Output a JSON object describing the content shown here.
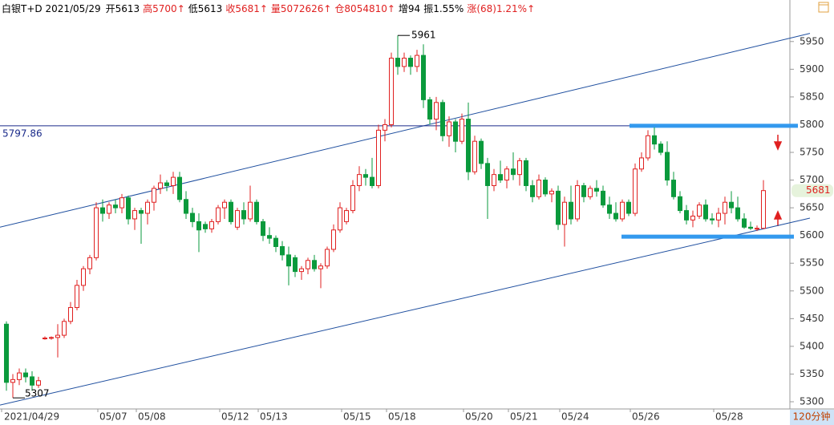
{
  "chart_data": {
    "type": "candlestick",
    "header": [
      {
        "text": "白银T+D 2021/05/29",
        "color": "#000000"
      },
      {
        "text": "开5613",
        "color": "#000000"
      },
      {
        "text": "高5700↑",
        "color": "#e02020"
      },
      {
        "text": "低5613",
        "color": "#000000"
      },
      {
        "text": "收5681↑",
        "color": "#e02020"
      },
      {
        "text": "量5072626↑",
        "color": "#e02020"
      },
      {
        "text": "仓8054810↑",
        "color": "#e02020"
      },
      {
        "text": "增94",
        "color": "#000000"
      },
      {
        "text": "振1.55%",
        "color": "#000000"
      },
      {
        "text": "涨(68)1.21%↑",
        "color": "#e02020"
      }
    ],
    "up_color": "#e02020",
    "down_color": "#0a9a3c",
    "ylim": [
      5287,
      5996
    ],
    "yticks": [
      5300,
      5350,
      5400,
      5450,
      5500,
      5550,
      5600,
      5650,
      5700,
      5750,
      5800,
      5850,
      5900,
      5950
    ],
    "ref_line": {
      "value": 5797.86,
      "label": "5797.86",
      "color": "#1a2a8a"
    },
    "channel": [
      {
        "start": 5615,
        "end": 5956
      },
      {
        "start": 5294,
        "end": 5623
      }
    ],
    "channel_color": "#1f4f9f",
    "levels": [
      5798,
      5598
    ],
    "level_color": "#3399ee",
    "high_label": "5961",
    "low_label": "5307",
    "period": "120分钟",
    "categories": [
      "2021/04/29",
      null,
      null,
      null,
      null,
      null,
      null,
      null,
      null,
      null,
      null,
      null,
      null,
      null,
      null,
      "05/07",
      null,
      null,
      null,
      null,
      null,
      "05/08",
      null,
      null,
      null,
      null,
      null,
      null,
      null,
      null,
      null,
      null,
      null,
      null,
      "05/12",
      null,
      null,
      null,
      null,
      null,
      "05/13",
      null,
      null,
      null,
      null,
      null,
      null,
      null,
      null,
      null,
      null,
      null,
      null,
      "05/15",
      null,
      null,
      null,
      null,
      null,
      null,
      "05/18",
      null,
      null,
      null,
      null,
      null,
      null,
      null,
      null,
      null,
      null,
      null,
      "05/20",
      null,
      null,
      null,
      null,
      null,
      null,
      "05/21",
      null,
      null,
      null,
      null,
      null,
      null,
      null,
      "05/24",
      null,
      null,
      null,
      null,
      null,
      null,
      null,
      null,
      null,
      null,
      "05/26",
      null,
      null,
      null,
      null,
      null,
      null,
      null,
      null,
      null,
      null,
      null,
      null,
      "05/28",
      null,
      null,
      null,
      null,
      null,
      null,
      null
    ],
    "candles": [
      [
        5440,
        5445,
        5320,
        5335
      ],
      [
        5335,
        5350,
        5307,
        5340
      ],
      [
        5340,
        5360,
        5330,
        5352
      ],
      [
        5352,
        5360,
        5335,
        5345
      ],
      [
        5345,
        5355,
        5320,
        5330
      ],
      [
        5330,
        5345,
        5325,
        5338
      ],
      [
        5415,
        5418,
        5412,
        5415
      ],
      [
        5415,
        5418,
        5412,
        5416
      ],
      [
        5416,
        5440,
        5380,
        5420
      ],
      [
        5420,
        5450,
        5415,
        5445
      ],
      [
        5445,
        5480,
        5440,
        5470
      ],
      [
        5470,
        5520,
        5465,
        5510
      ],
      [
        5510,
        5545,
        5500,
        5540
      ],
      [
        5540,
        5565,
        5530,
        5560
      ],
      [
        5560,
        5660,
        5555,
        5650
      ],
      [
        5650,
        5665,
        5625,
        5640
      ],
      [
        5640,
        5660,
        5630,
        5655
      ],
      [
        5655,
        5665,
        5640,
        5650
      ],
      [
        5650,
        5675,
        5640,
        5668
      ],
      [
        5668,
        5672,
        5620,
        5630
      ],
      [
        5630,
        5650,
        5610,
        5645
      ],
      [
        5645,
        5650,
        5585,
        5640
      ],
      [
        5640,
        5665,
        5620,
        5660
      ],
      [
        5660,
        5690,
        5645,
        5685
      ],
      [
        5685,
        5710,
        5675,
        5695
      ],
      [
        5695,
        5700,
        5680,
        5690
      ],
      [
        5690,
        5715,
        5675,
        5705
      ],
      [
        5705,
        5715,
        5660,
        5665
      ],
      [
        5665,
        5680,
        5630,
        5640
      ],
      [
        5640,
        5650,
        5615,
        5625
      ],
      [
        5625,
        5640,
        5570,
        5610
      ],
      [
        5620,
        5625,
        5605,
        5612
      ],
      [
        5612,
        5630,
        5605,
        5625
      ],
      [
        5625,
        5655,
        5620,
        5650
      ],
      [
        5650,
        5665,
        5630,
        5660
      ],
      [
        5660,
        5665,
        5620,
        5625
      ],
      [
        5615,
        5650,
        5610,
        5645
      ],
      [
        5645,
        5660,
        5620,
        5630
      ],
      [
        5630,
        5690,
        5625,
        5660
      ],
      [
        5660,
        5665,
        5620,
        5625
      ],
      [
        5625,
        5630,
        5590,
        5600
      ],
      [
        5600,
        5615,
        5585,
        5595
      ],
      [
        5595,
        5600,
        5570,
        5580
      ],
      [
        5580,
        5590,
        5555,
        5565
      ],
      [
        5565,
        5580,
        5510,
        5545
      ],
      [
        5560,
        5565,
        5525,
        5535
      ],
      [
        5535,
        5545,
        5520,
        5540
      ],
      [
        5540,
        5560,
        5530,
        5555
      ],
      [
        5555,
        5565,
        5535,
        5540
      ],
      [
        5540,
        5550,
        5505,
        5545
      ],
      [
        5545,
        5580,
        5540,
        5575
      ],
      [
        5575,
        5620,
        5570,
        5610
      ],
      [
        5610,
        5660,
        5605,
        5650
      ],
      [
        5625,
        5650,
        5620,
        5645
      ],
      [
        5645,
        5700,
        5640,
        5690
      ],
      [
        5690,
        5725,
        5680,
        5710
      ],
      [
        5710,
        5720,
        5690,
        5705
      ],
      [
        5705,
        5740,
        5685,
        5690
      ],
      [
        5690,
        5800,
        5685,
        5790
      ],
      [
        5790,
        5810,
        5770,
        5800
      ],
      [
        5800,
        5930,
        5795,
        5920
      ],
      [
        5920,
        5961,
        5890,
        5905
      ],
      [
        5905,
        5930,
        5895,
        5920
      ],
      [
        5920,
        5925,
        5890,
        5905
      ],
      [
        5905,
        5935,
        5895,
        5925
      ],
      [
        5925,
        5945,
        5830,
        5845
      ],
      [
        5845,
        5850,
        5800,
        5810
      ],
      [
        5810,
        5850,
        5790,
        5840
      ],
      [
        5840,
        5845,
        5770,
        5780
      ],
      [
        5780,
        5815,
        5760,
        5805
      ],
      [
        5805,
        5810,
        5750,
        5770
      ],
      [
        5770,
        5820,
        5765,
        5810
      ],
      [
        5810,
        5840,
        5700,
        5715
      ],
      [
        5715,
        5780,
        5710,
        5770
      ],
      [
        5770,
        5775,
        5720,
        5730
      ],
      [
        5730,
        5740,
        5630,
        5690
      ],
      [
        5690,
        5720,
        5680,
        5710
      ],
      [
        5710,
        5735,
        5695,
        5700
      ],
      [
        5700,
        5725,
        5685,
        5720
      ],
      [
        5720,
        5750,
        5700,
        5710
      ],
      [
        5710,
        5740,
        5690,
        5735
      ],
      [
        5735,
        5740,
        5680,
        5690
      ],
      [
        5690,
        5700,
        5660,
        5670
      ],
      [
        5670,
        5710,
        5665,
        5700
      ],
      [
        5700,
        5705,
        5670,
        5675
      ],
      [
        5675,
        5685,
        5660,
        5680
      ],
      [
        5680,
        5690,
        5610,
        5620
      ],
      [
        5620,
        5670,
        5580,
        5660
      ],
      [
        5660,
        5690,
        5620,
        5630
      ],
      [
        5630,
        5700,
        5625,
        5690
      ],
      [
        5690,
        5695,
        5660,
        5670
      ],
      [
        5670,
        5690,
        5665,
        5685
      ],
      [
        5685,
        5700,
        5670,
        5680
      ],
      [
        5680,
        5690,
        5650,
        5655
      ],
      [
        5655,
        5670,
        5630,
        5640
      ],
      [
        5640,
        5660,
        5625,
        5630
      ],
      [
        5630,
        5665,
        5625,
        5660
      ],
      [
        5660,
        5665,
        5635,
        5640
      ],
      [
        5640,
        5730,
        5635,
        5720
      ],
      [
        5720,
        5750,
        5715,
        5740
      ],
      [
        5740,
        5790,
        5735,
        5780
      ],
      [
        5780,
        5795,
        5755,
        5765
      ],
      [
        5765,
        5770,
        5745,
        5750
      ],
      [
        5750,
        5770,
        5690,
        5700
      ],
      [
        5700,
        5715,
        5665,
        5670
      ],
      [
        5670,
        5680,
        5640,
        5645
      ],
      [
        5645,
        5655,
        5620,
        5628
      ],
      [
        5628,
        5645,
        5615,
        5635
      ],
      [
        5635,
        5660,
        5630,
        5655
      ],
      [
        5655,
        5665,
        5625,
        5630
      ],
      [
        5630,
        5640,
        5620,
        5628
      ],
      [
        5628,
        5650,
        5615,
        5640
      ],
      [
        5640,
        5670,
        5620,
        5660
      ],
      [
        5660,
        5680,
        5640,
        5650
      ],
      [
        5650,
        5670,
        5625,
        5630
      ],
      [
        5630,
        5640,
        5612,
        5615
      ],
      [
        5615,
        5625,
        5610,
        5613
      ],
      [
        5613,
        5618,
        5608,
        5613
      ],
      [
        5613,
        5700,
        5613,
        5681
      ]
    ]
  }
}
